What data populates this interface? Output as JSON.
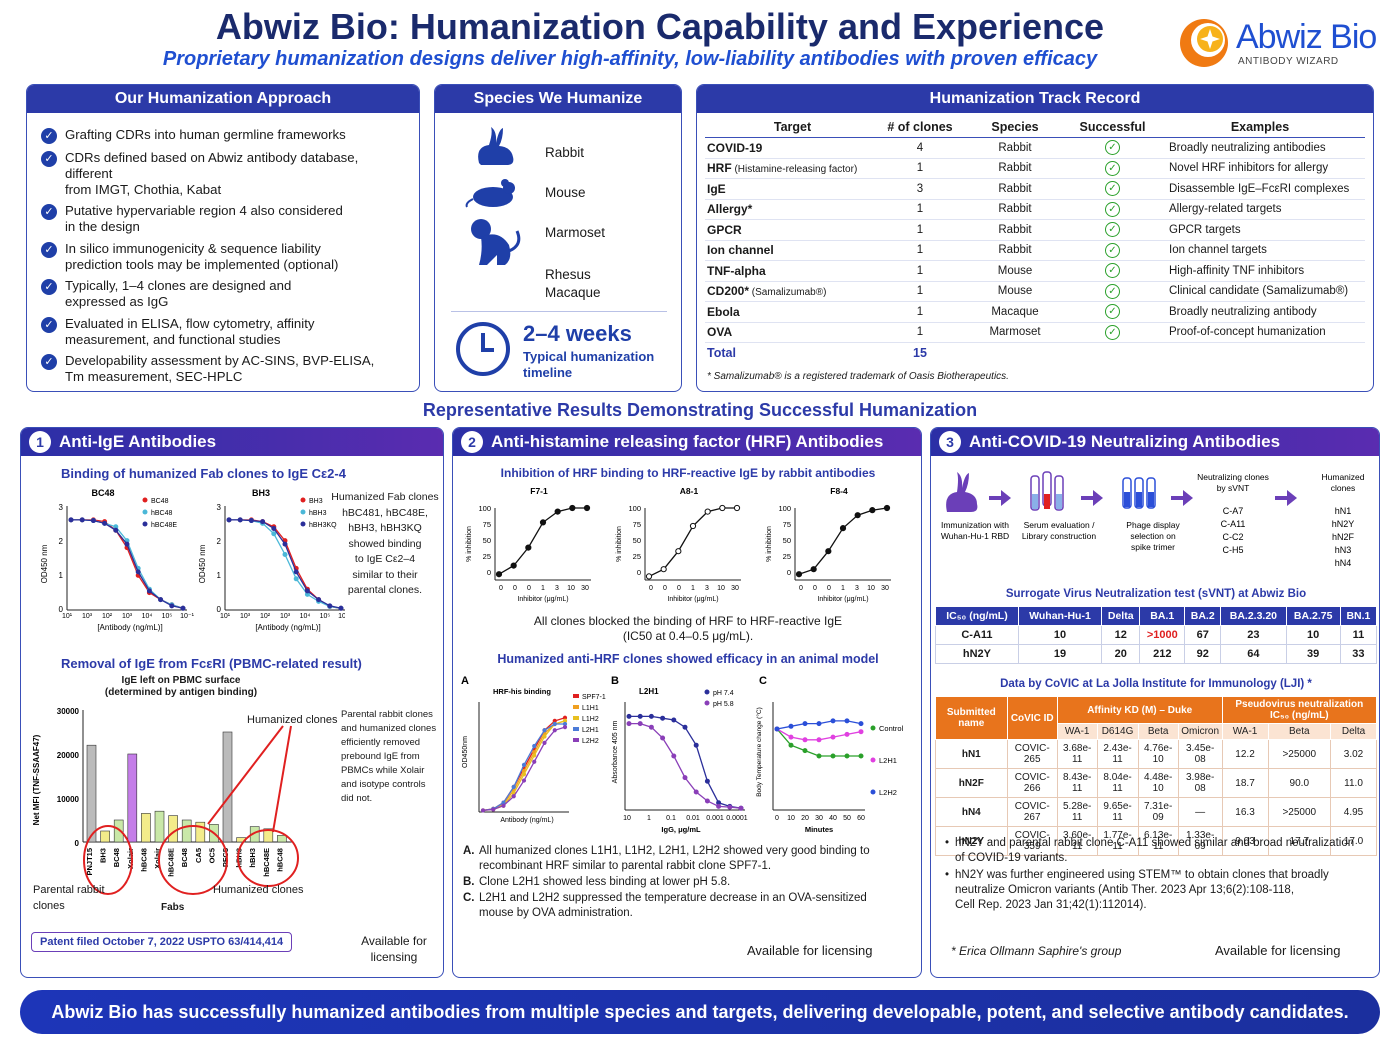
{
  "header": {
    "title": "Abwiz Bio: Humanization Capability and Experience",
    "subtitle": "Proprietary humanization designs deliver high-affinity, low-liability antibodies with proven efficacy",
    "logo_name": "Abwiz Bio",
    "logo_sub": "ANTIBODY WIZARD"
  },
  "approach": {
    "title": "Our Humanization Approach",
    "items": [
      [
        "Grafting CDRs into human germline frameworks"
      ],
      [
        "CDRs defined based on Abwiz antibody database, different",
        "from IMGT, Chothia, Kabat"
      ],
      [
        "Putative hypervariable region 4 also considered",
        "in the design"
      ],
      [
        "In silico immunogenicity & sequence liability",
        "prediction tools may be implemented (optional)"
      ],
      [
        "Typically, 1–4 clones are designed and",
        "expressed as IgG"
      ],
      [
        "Evaluated in ELISA, flow cytometry, affinity",
        "measurement, and functional studies"
      ],
      [
        "Developability assessment by AC-SINS, BVP-ELISA,",
        "Tm measurement, SEC-HPLC"
      ]
    ]
  },
  "species": {
    "title": "Species We Humanize",
    "items": [
      "Rabbit",
      "Mouse",
      "Marmoset",
      "Rhesus",
      "Macaque"
    ],
    "timeline_value": "2–4 weeks",
    "timeline_label1": "Typical humanization",
    "timeline_label2": "timeline"
  },
  "track": {
    "title": "Humanization Track Record",
    "headers": [
      "Target",
      "# of clones",
      "Species",
      "Successful",
      "Examples"
    ],
    "rows": [
      {
        "t": "COVID-19",
        "n": "",
        "c": "4",
        "s": "Rabbit",
        "e": "Broadly neutralizing antibodies"
      },
      {
        "t": "HRF",
        "n": "(Histamine-releasing factor)",
        "c": "1",
        "s": "Rabbit",
        "e": "Novel HRF inhibitors for allergy"
      },
      {
        "t": "IgE",
        "n": "",
        "c": "3",
        "s": "Rabbit",
        "e": "Disassemble IgE–FcεRI complexes"
      },
      {
        "t": "Allergy*",
        "n": "",
        "c": "1",
        "s": "Rabbit",
        "e": "Allergy-related targets"
      },
      {
        "t": "GPCR",
        "n": "",
        "c": "1",
        "s": "Rabbit",
        "e": "GPCR targets"
      },
      {
        "t": "Ion channel",
        "n": "",
        "c": "1",
        "s": "Rabbit",
        "e": "Ion channel targets"
      },
      {
        "t": "TNF-alpha",
        "n": "",
        "c": "1",
        "s": "Mouse",
        "e": "High-affinity TNF inhibitors"
      },
      {
        "t": "CD200*",
        "n": "(Samalizumab®)",
        "c": "1",
        "s": "Mouse",
        "e": "Clinical candidate (Samalizumab®)"
      },
      {
        "t": "Ebola",
        "n": "",
        "c": "1",
        "s": "Macaque",
        "e": "Broadly neutralizing antibody"
      },
      {
        "t": "OVA",
        "n": "",
        "c": "1",
        "s": "Marmoset",
        "e": "Proof-of-concept humanization"
      }
    ],
    "total_label": "Total",
    "total": "15",
    "footnote": "* Samalizumab® is a registered trademark of Oasis Biotherapeutics."
  },
  "section_title": "Representative Results Demonstrating Successful Humanization",
  "ige": {
    "num": "1",
    "title": "Anti-IgE Antibodies",
    "binding_title": "Binding of humanized Fab clones to IgE Cε2-4",
    "bc48_title": "BC48",
    "bh3_title": "BH3",
    "bc48_legend": [
      "BC48",
      "hBC48",
      "hBC48E"
    ],
    "bh3_legend": [
      "BH3",
      "hBH3",
      "hBH3KQ"
    ],
    "ylabel": "OD450 nm",
    "xlabel": "[Antibody (ng/mL)]",
    "xticks": [
      "10¹",
      "10³",
      "10²",
      "10³",
      "10⁴",
      "10⁵",
      "10⁻¹"
    ],
    "yticks": [
      "3",
      "2",
      "1",
      "0"
    ],
    "binding_note": [
      "Humanized Fab clones",
      "hBC481, hBC48E,",
      "hBH3, hBH3KQ",
      "showed binding",
      "to IgE Cε2–4",
      "similar to their",
      "parental clones."
    ],
    "removal_title": "Removal of IgE from FcεRI (PBMC-related result)",
    "bar_title1": "IgE left on PBMC surface",
    "bar_title2": "(determined by antigen binding)",
    "bar_ylabel": "Net MFI (TNF-SSAAF47)",
    "bar_yticks": [
      "30000",
      "20000",
      "10000",
      "0"
    ],
    "bar_labels": [
      "PNJT15",
      "BH3",
      "BC48",
      "Xolair",
      "hBC48",
      "Xolair",
      "hBC48E",
      "BC48",
      "CA5",
      "OC5",
      "PFC5",
      "hBH3",
      "hBH3",
      "hBC48E",
      "hBC48"
    ],
    "humanized_label": "Humanized clones",
    "parental_label1": "Parental rabbit",
    "parental_label2": "clones",
    "fabs_label": "Fabs",
    "bar_note": [
      "Parental rabbit clones",
      "and humanized clones",
      "efficiently removed",
      "prebound IgE from",
      "PBMCs while Xolair",
      "and isotype controls",
      "did not."
    ],
    "patent": "Patent filed October 7, 2022  USPTO 63/414,414",
    "licensing1": "Available for",
    "licensing2": "licensing"
  },
  "hrf": {
    "num": "2",
    "title": "Anti-histamine releasing factor (HRF) Antibodies",
    "inhib_title": "Inhibition of HRF binding to HRF-reactive IgE by rabbit antibodies",
    "plots": [
      "F7-1",
      "A8-1",
      "F8-4"
    ],
    "inhib_ylabel": "% inhibition",
    "inhib_xlabel": "Inhibitor (μg/mL)",
    "inhib_yticks": [
      "100",
      "75",
      "50",
      "25",
      "0"
    ],
    "inhib_xticks": [
      "0",
      "0",
      "0",
      "1",
      "3",
      "10",
      "30"
    ],
    "inhib_note1": "All clones blocked the binding of HRF to HRF-reactive IgE",
    "inhib_note2": "(IC50 at 0.4–0.5 μg/mL).",
    "animal_title": "Humanized anti-HRF clones showed efficacy in an animal model",
    "panel_a": "A",
    "panel_b": "B",
    "panel_c": "C",
    "a_title": "HRF-his binding",
    "a_legend": [
      "SPF7-1",
      "L1H1",
      "L1H2",
      "L2H1",
      "L2H2"
    ],
    "a_ylabel": "OD450nm",
    "a_xlabel": "Antibody (ng/mL)",
    "b_title": "L2H1",
    "b_legend": [
      "pH 7.4",
      "pH 5.8"
    ],
    "b_ylabel": "Absorbance 405 nm",
    "b_xlabel": "IgG, μg/mL",
    "b_xticks": [
      "10",
      "1",
      "0.1",
      "0.01",
      "0.001",
      "0.0001"
    ],
    "c_ylabel": "Body Temperature change (°C)",
    "c_xlabel": "Minutes",
    "c_legend": [
      "Control",
      "L2H1",
      "L2H2"
    ],
    "c_xticks": [
      "0",
      "10",
      "20",
      "30",
      "40",
      "50",
      "60"
    ],
    "notes": [
      [
        "A.",
        "All humanized clones L1H1, L1H2, L2H1, L2H2 showed very good binding to",
        "recombinant HRF similar to parental rabbit clone SPF7-1."
      ],
      [
        "B.",
        "Clone L2H1 showed less binding at lower pH 5.8.",
        ""
      ],
      [
        "C.",
        "L2H1 and L2H2 suppressed the temperature decrease in an OVA-sensitized",
        "mouse by OVA  administration."
      ]
    ],
    "licensing": "Available for licensing"
  },
  "covid": {
    "num": "3",
    "title": "Anti-COVID-19 Neutralizing Antibodies",
    "flow": [
      [
        "Immunization with",
        "Wuhan-Hu-1 RBD"
      ],
      [
        "Serum evaluation /",
        "Library construction"
      ],
      [
        "Phage display",
        "selection on",
        "spike trimer"
      ]
    ],
    "sv_head": [
      "Neutralizing clones",
      "by sVNT"
    ],
    "sv_clones": [
      "C-A7",
      "C-A11",
      "C-C2",
      "C-H5"
    ],
    "hum_head": [
      "Humanized",
      "clones"
    ],
    "hum_clones": [
      "hN1",
      "hN2Y",
      "hN2F",
      "hN3",
      "hN4"
    ],
    "svnt_title": "Surrogate Virus Neutralization test (sVNT) at Abwiz Bio",
    "svnt_headers": [
      "IC₅₀ (ng/mL)",
      "Wuhan-Hu-1",
      "Delta",
      "BA.1",
      "BA.2",
      "BA.2.3.20",
      "BA.2.75",
      "BN.1"
    ],
    "svnt_rows": [
      [
        "C-A11",
        "10",
        "12",
        ">1000",
        "67",
        "23",
        "10",
        "11"
      ],
      [
        "hN2Y",
        "19",
        "20",
        "212",
        "92",
        "64",
        "39",
        "33"
      ]
    ],
    "covic_title": "Data by CoVIC at La Jolla Institute for Immunology (LJI) *",
    "covic_h1": [
      "Submitted name",
      "CoVIC ID",
      "Affinity KD (M) – Duke",
      "Pseudovirus neutralization IC₅₀ (ng/mL)"
    ],
    "covic_h2": [
      "WA-1",
      "D614G",
      "Beta",
      "Omicron",
      "WA-1",
      "Beta",
      "Delta"
    ],
    "covic_rows": [
      [
        "hN1",
        "COVIC-265",
        "3.68e-11",
        "2.43e-11",
        "4.76e-10",
        "3.45e-08",
        "12.2",
        ">25000",
        "3.02"
      ],
      [
        "hN2F",
        "COVIC-266",
        "8.43e-11",
        "8.04e-11",
        "4.48e-10",
        "3.98e-08",
        "18.7",
        "90.0",
        "11.0"
      ],
      [
        "hN4",
        "COVIC-267",
        "5.28e-11",
        "9.65e-11",
        "7.31e-09",
        "—",
        "16.3",
        ">25000",
        "4.95"
      ],
      [
        "hN2Y",
        "COVIC-359",
        "3.60e-11",
        "1.77e-11",
        "6.13e-11",
        "1.33e-09",
        "9.03",
        "17.7",
        "17.0"
      ]
    ],
    "bullets": [
      [
        "hN2Y and parental rabbit clone C-A11 showed similar and broad neutralization",
        "of COVID-19 variants."
      ],
      [
        "hN2Y was further engineered using STEM™ to obtain clones that broadly",
        "neutralize Omicron variants (Antib Ther. 2023 Apr 13;6(2):108-118,",
        "Cell Rep. 2023 Jan 31;42(1):112014)."
      ]
    ],
    "group": "* Erica Ollmann Saphire's group",
    "licensing": "Available for licensing"
  },
  "footer": "Abwiz Bio has successfully humanized antibodies from multiple species and targets, delivering developable, potent, and selective antibody candidates.",
  "colors": {
    "navy": "#2c3aa8",
    "accent": "#1f4fd1",
    "orange": "#e8741c",
    "red": "#e02020",
    "green": "#2aa02a"
  },
  "chart_data": [
    {
      "type": "line",
      "title": "BC48",
      "x": [
        1,
        3,
        10,
        30,
        100,
        300,
        1000,
        3000,
        10000,
        30000,
        100000
      ],
      "series": [
        {
          "name": "BC48",
          "values": [
            2.6,
            2.6,
            2.6,
            2.55,
            2.3,
            1.8,
            1.0,
            0.5,
            0.3,
            0.15,
            0.05
          ]
        },
        {
          "name": "hBC48",
          "values": [
            2.6,
            2.6,
            2.58,
            2.5,
            2.4,
            2.0,
            1.2,
            0.6,
            0.3,
            0.15,
            0.05
          ]
        },
        {
          "name": "hBC48E",
          "values": [
            2.6,
            2.6,
            2.58,
            2.5,
            2.3,
            1.9,
            1.1,
            0.55,
            0.3,
            0.12,
            0.05
          ]
        }
      ],
      "ylabel": "OD450 nm",
      "xlabel": "[Antibody (ng/mL)]",
      "ylim": [
        0,
        3
      ]
    },
    {
      "type": "line",
      "title": "BH3",
      "x": [
        1,
        3,
        10,
        30,
        100,
        300,
        1000,
        3000,
        10000,
        30000,
        100000
      ],
      "series": [
        {
          "name": "BH3",
          "values": [
            2.6,
            2.6,
            2.6,
            2.55,
            2.4,
            2.0,
            1.2,
            0.6,
            0.3,
            0.1,
            0.05
          ]
        },
        {
          "name": "hBH3",
          "values": [
            2.6,
            2.6,
            2.58,
            2.5,
            2.2,
            1.6,
            0.9,
            0.45,
            0.25,
            0.1,
            0.05
          ]
        },
        {
          "name": "hBH3KQ",
          "values": [
            2.6,
            2.6,
            2.58,
            2.55,
            2.35,
            1.9,
            1.1,
            0.55,
            0.3,
            0.12,
            0.05
          ]
        }
      ],
      "ylabel": "OD450 nm",
      "xlabel": "[Antibody (ng/mL)]",
      "ylim": [
        0,
        3
      ]
    },
    {
      "type": "bar",
      "title": "IgE left on PBMC surface",
      "categories": [
        "PNJT15",
        "BH3",
        "BC48",
        "Xolair",
        "hBC48",
        "Xolair",
        "hBC48E",
        "BC48",
        "CA5",
        "OC5",
        "PFC5",
        "hBH3",
        "hBH3",
        "hBC48E",
        "hBC48"
      ],
      "values": [
        22000,
        2500,
        5000,
        20000,
        6500,
        7000,
        6000,
        5000,
        4500,
        4000,
        25000,
        1000,
        3500,
        3000,
        1500
      ],
      "ylabel": "Net MFI (TNF-SSAAF47)",
      "ylim": [
        0,
        30000
      ]
    },
    {
      "type": "line",
      "title": "F7-1",
      "x": [
        0,
        0.1,
        0.3,
        1,
        3,
        10,
        30
      ],
      "series": [
        {
          "values": [
            8,
            20,
            45,
            80,
            95,
            100,
            100
          ]
        }
      ],
      "ylabel": "% inhibition",
      "xlabel": "Inhibitor (μg/mL)",
      "ylim": [
        0,
        100
      ]
    },
    {
      "type": "line",
      "title": "A8-1",
      "x": [
        0,
        0.1,
        0.3,
        1,
        3,
        10,
        30
      ],
      "series": [
        {
          "values": [
            5,
            15,
            40,
            75,
            95,
            100,
            100
          ]
        }
      ],
      "ylabel": "% inhibition",
      "xlabel": "Inhibitor (μg/mL)",
      "ylim": [
        0,
        100
      ]
    },
    {
      "type": "line",
      "title": "F8-4",
      "x": [
        0,
        0.1,
        0.3,
        1,
        3,
        10,
        30
      ],
      "series": [
        {
          "values": [
            8,
            15,
            40,
            72,
            90,
            97,
            100
          ]
        }
      ],
      "ylabel": "% inhibition",
      "xlabel": "Inhibitor (μg/mL)",
      "ylim": [
        0,
        100
      ]
    },
    {
      "type": "line",
      "title": "HRF-his binding",
      "x": [
        1,
        3,
        10,
        30,
        100,
        300,
        1000,
        3000,
        10000
      ],
      "series": [
        {
          "name": "SPF7-1",
          "values": [
            0.05,
            0.1,
            0.3,
            0.8,
            1.4,
            2.0,
            2.6,
            2.9,
            3.0
          ]
        },
        {
          "name": "L1H1",
          "values": [
            0.05,
            0.1,
            0.25,
            0.7,
            1.3,
            1.9,
            2.5,
            2.8,
            2.9
          ]
        },
        {
          "name": "L1H2",
          "values": [
            0.05,
            0.08,
            0.2,
            0.6,
            1.2,
            1.8,
            2.4,
            2.8,
            2.9
          ]
        },
        {
          "name": "L2H1",
          "values": [
            0.05,
            0.1,
            0.3,
            0.8,
            1.5,
            2.1,
            2.6,
            2.8,
            2.8
          ]
        },
        {
          "name": "L2H2",
          "values": [
            0.05,
            0.08,
            0.2,
            0.5,
            1.0,
            1.6,
            2.2,
            2.6,
            2.7
          ]
        }
      ],
      "ylabel": "OD450nm",
      "xlabel": "Antibody (ng/mL)",
      "ylim": [
        0,
        3.5
      ]
    },
    {
      "type": "line",
      "title": "L2H1",
      "x": [
        "10",
        "3",
        "1",
        "0.3",
        "0.1",
        "0.03",
        "0.01",
        "0.003",
        "0.001",
        "0.0003",
        "0.0001"
      ],
      "series": [
        {
          "name": "pH 7.4",
          "values": [
            2.6,
            2.6,
            2.6,
            2.55,
            2.5,
            2.3,
            1.8,
            0.8,
            0.2,
            0.1,
            0.05
          ]
        },
        {
          "name": "pH 5.8",
          "values": [
            2.4,
            2.4,
            2.3,
            2.0,
            1.5,
            0.9,
            0.5,
            0.25,
            0.1,
            0.08,
            0.05
          ]
        }
      ],
      "ylabel": "Absorbance 405 nm",
      "xlabel": "IgG, μg/mL",
      "ylim": [
        0,
        3
      ]
    },
    {
      "type": "line",
      "title": "",
      "x": [
        0,
        10,
        20,
        30,
        40,
        50,
        60
      ],
      "series": [
        {
          "name": "Control",
          "values": [
            0,
            -0.6,
            -0.8,
            -1.0,
            -1.0,
            -1.0,
            -1.0
          ]
        },
        {
          "name": "L2H1",
          "values": [
            0,
            -0.3,
            -0.4,
            -0.4,
            -0.3,
            -0.2,
            -0.1
          ]
        },
        {
          "name": "L2H2",
          "values": [
            0,
            0.1,
            0.2,
            0.2,
            0.3,
            0.3,
            0.2
          ]
        }
      ],
      "ylabel": "Body Temperature change (°C)",
      "xlabel": "Minutes",
      "ylim": [
        -3,
        1
      ]
    }
  ]
}
